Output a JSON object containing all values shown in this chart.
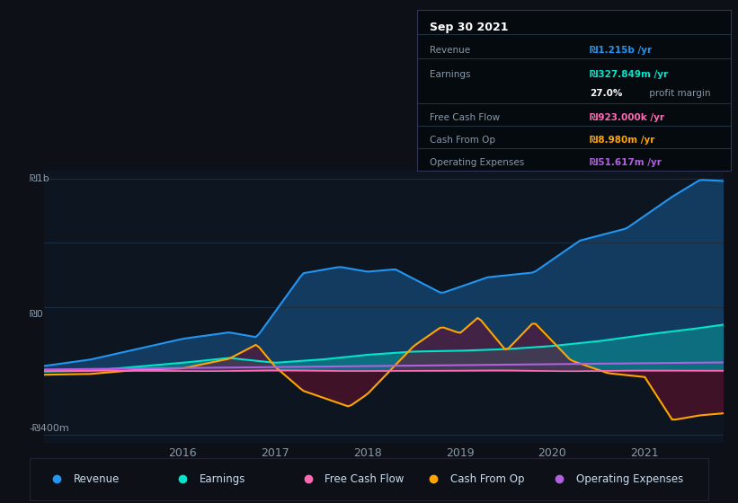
{
  "bg_color": "#0d1117",
  "plot_bg_color": "#0d1520",
  "title": "Sep 30 2021",
  "y_label_top": "₪1b",
  "y_label_mid": "₪0",
  "y_label_bot": "-₪400m",
  "ylim": [
    -450000000,
    1250000000
  ],
  "colors": {
    "revenue": "#2196f3",
    "earnings": "#00e5cc",
    "free_cash_flow": "#ff69b4",
    "cash_from_op": "#ffa500",
    "operating_expenses": "#b060e0"
  },
  "tooltip": {
    "date": "Sep 30 2021",
    "revenue_label": "Revenue",
    "revenue_value": "₪1.215b /yr",
    "earnings_label": "Earnings",
    "earnings_value": "₪327.849m /yr",
    "profit_margin": "27.0% profit margin",
    "fcf_label": "Free Cash Flow",
    "fcf_value": "₪923.000k /yr",
    "cfop_label": "Cash From Op",
    "cfop_value": "₪8.980m /yr",
    "opex_label": "Operating Expenses",
    "opex_value": "₪51.617m /yr"
  },
  "legend": [
    {
      "label": "Revenue",
      "color": "#2196f3"
    },
    {
      "label": "Earnings",
      "color": "#00e5cc"
    },
    {
      "label": "Free Cash Flow",
      "color": "#ff69b4"
    },
    {
      "label": "Cash From Op",
      "color": "#ffa500"
    },
    {
      "label": "Operating Expenses",
      "color": "#b060e0"
    }
  ],
  "grid_color": "#1e2d40",
  "zero_line_color": "#555577",
  "tick_label_color": "#8899aa",
  "tooltip_bg": "#050a0f",
  "tooltip_border": "#333355",
  "tooltip_divider": "#2a3a4a",
  "fill_dark_color": "#6b1030"
}
